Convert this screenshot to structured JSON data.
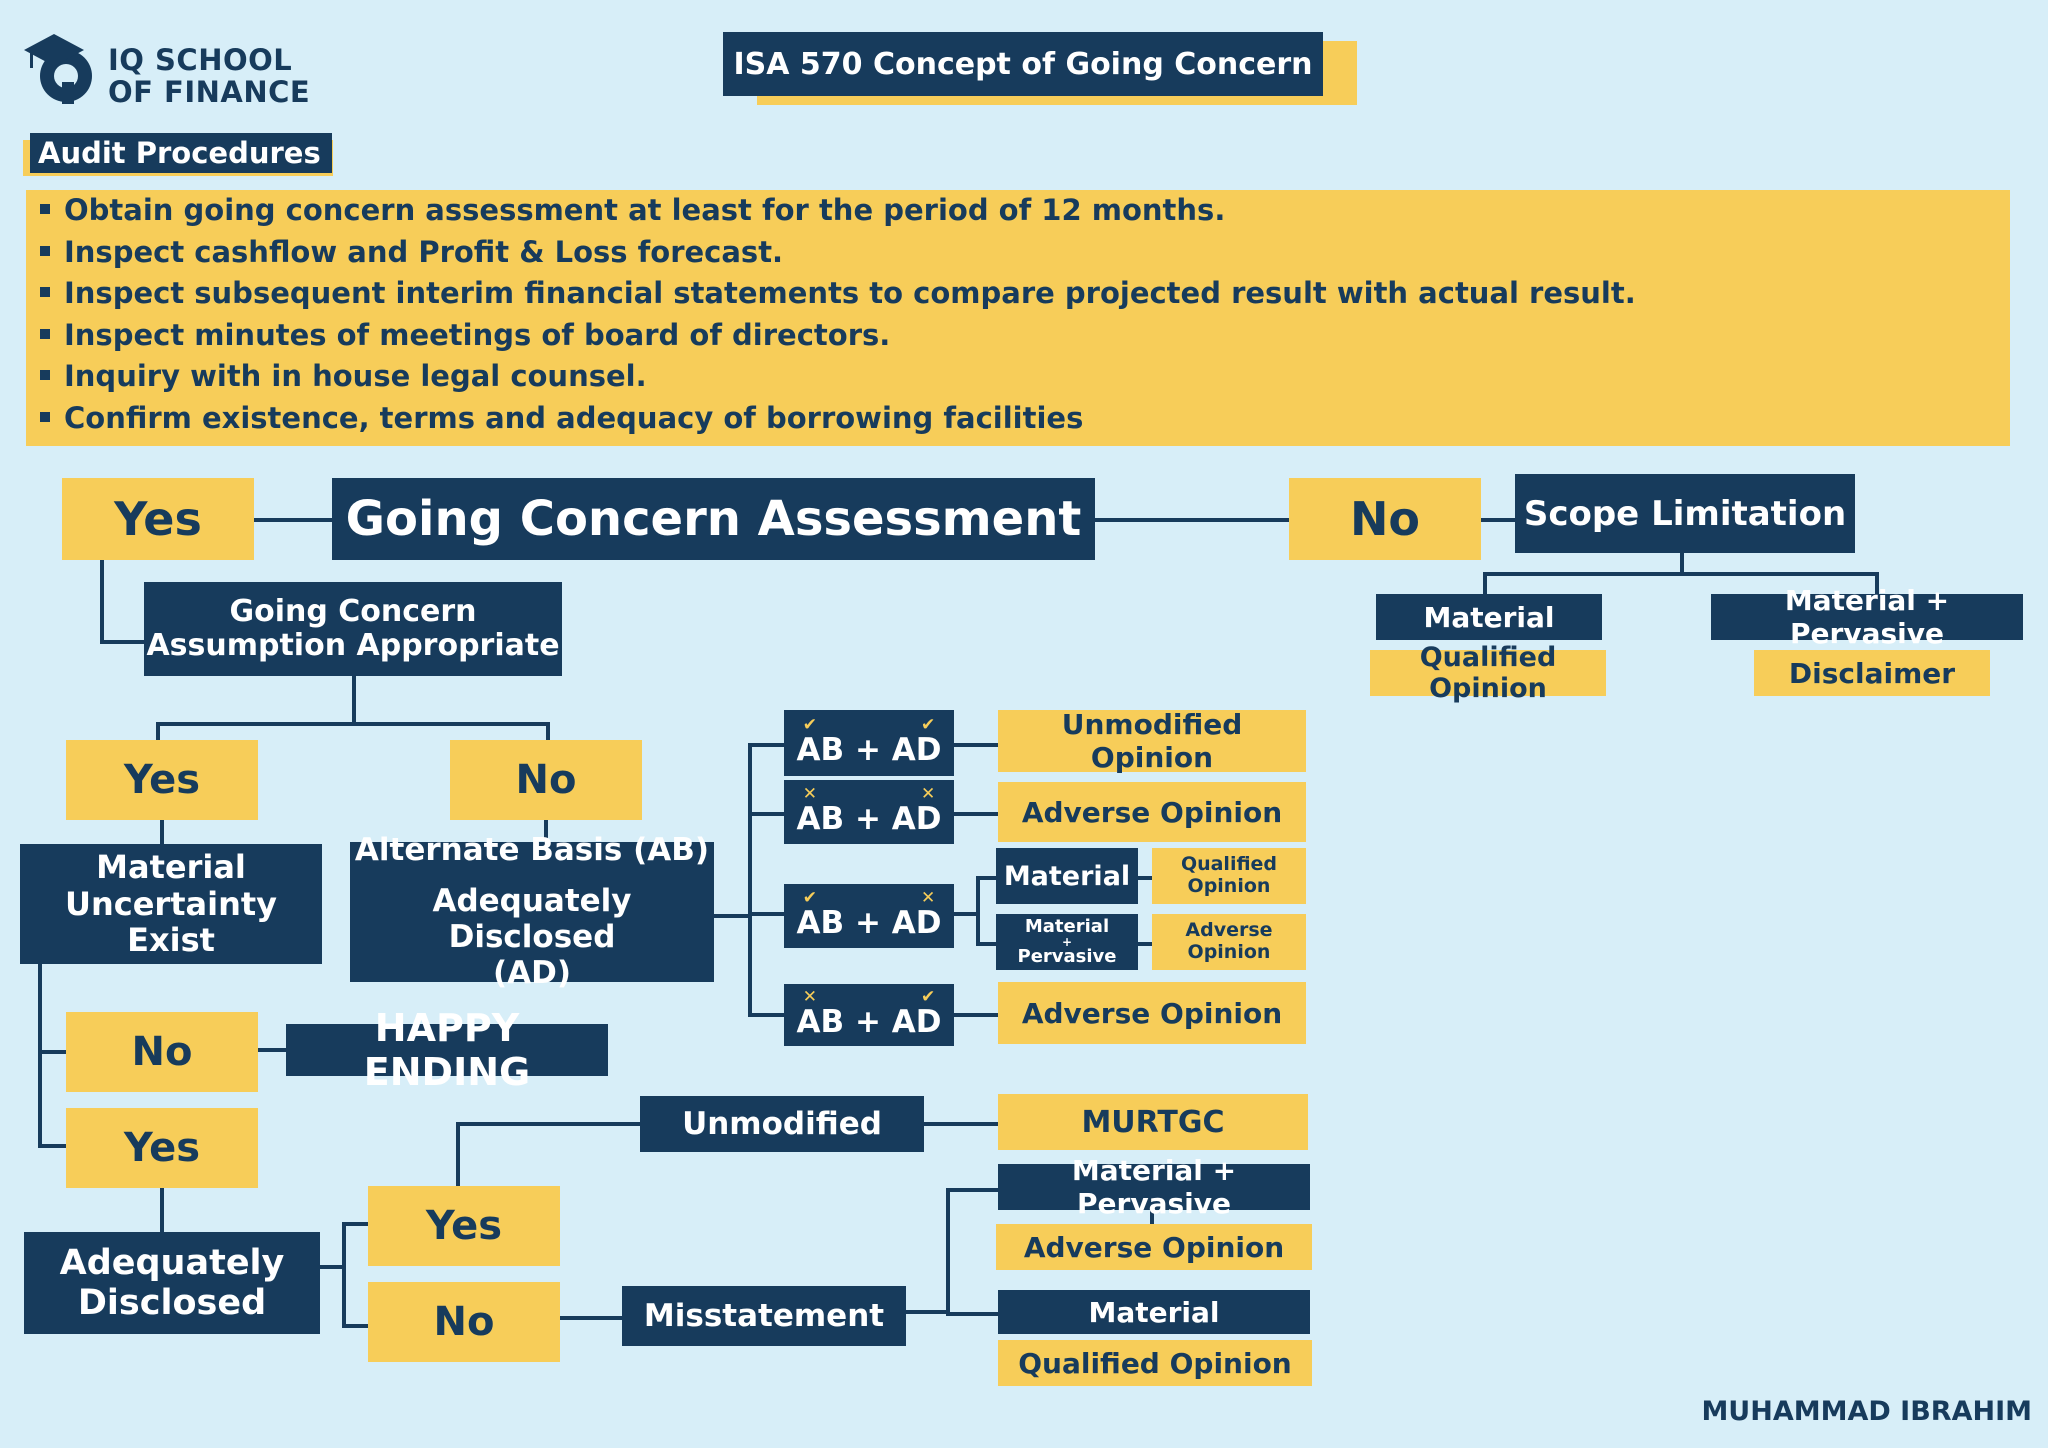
{
  "brand": {
    "line1": "IQ SCHOOL",
    "line2": "OF FINANCE"
  },
  "title": "ISA 570 Concept of Going Concern",
  "audit_heading": "Audit Procedures",
  "procedures": [
    "Obtain going concern assessment at least for the period of 12 months.",
    "Inspect cashflow and Profit & Loss forecast.",
    "Inspect subsequent interim financial statements to compare projected result with actual result.",
    "Inspect minutes of meetings of board of directors.",
    "Inquiry with in house legal counsel.",
    "Confirm existence, terms and adequacy of borrowing facilities"
  ],
  "flow": {
    "assessment": "Going Concern Assessment",
    "yes": "Yes",
    "no": "No",
    "scope_limitation": "Scope Limitation",
    "material": "Material",
    "material_pervasive": "Material + Pervasive",
    "qualified_opinion": "Qualified Opinion",
    "disclaimer": "Disclaimer",
    "gca_line1": "Going Concern",
    "gca_line2": "Assumption Appropriate",
    "mu_line1": "Material",
    "mu_line2": "Uncertainty Exist",
    "ab_line": "Alternate Basis (AB)",
    "ad_line1": "Adequately Disclosed",
    "ad_line2": "(AD)",
    "ab_ad": "AB + AD",
    "check": "✔",
    "cross": "✕",
    "unmodified_opinion": "Unmodified Opinion",
    "adverse_opinion": "Adverse Opinion",
    "small_material": "Material",
    "small_mp_1": "Material",
    "small_mp_2": "+",
    "small_mp_3": "Pervasive",
    "small_qual_1": "Qualified",
    "small_qual_2": "Opinion",
    "small_adv_1": "Adverse",
    "small_adv_2": "Opinion",
    "happy_ending": "HAPPY ENDING",
    "adequately_1": "Adequately",
    "adequately_2": "Disclosed",
    "unmodified": "Unmodified",
    "murtgc": "MURTGC",
    "misstatement": "Misstatement"
  },
  "author": "MUHAMMAD IBRAHIM",
  "colors": {
    "navy": "#173b5c",
    "yellow": "#f7cd59",
    "background": "#d7eef8"
  }
}
